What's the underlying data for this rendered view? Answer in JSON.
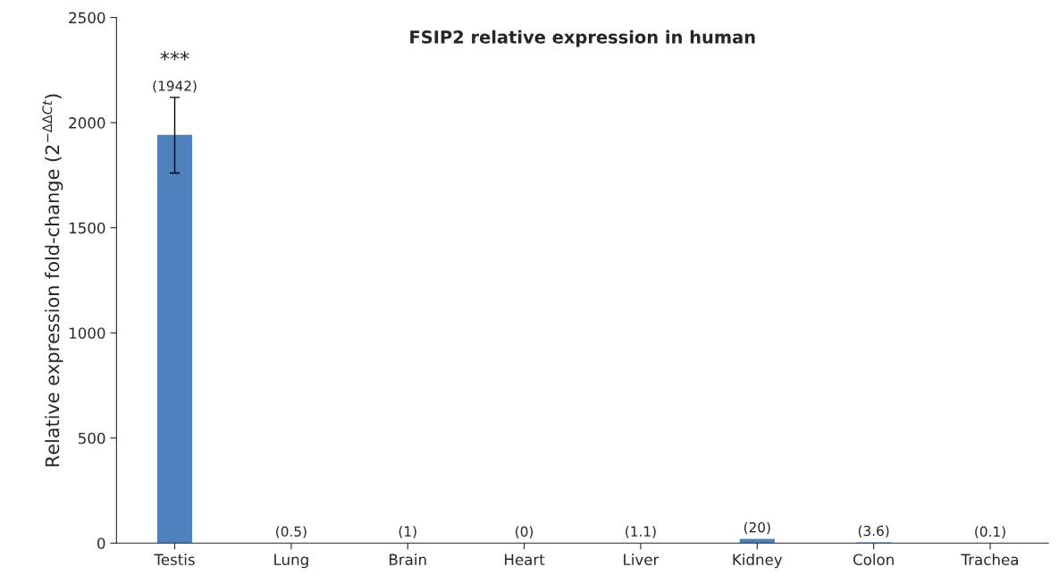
{
  "chart_data": {
    "type": "bar",
    "title": "FSIP2 relative expression in human",
    "ylabel": "Relative expression fold-change (2$^{−ΔΔCt}$)",
    "categories": [
      "Testis",
      "Lung",
      "Brain",
      "Heart",
      "Liver",
      "Kidney",
      "Colon",
      "Trachea"
    ],
    "values": [
      1942,
      0.5,
      1,
      0,
      1.1,
      20,
      3.6,
      0.1
    ],
    "value_labels": [
      "(1942)",
      "(0.5)",
      "(1)",
      "(0)",
      "(1.1)",
      "(20)",
      "(3.6)",
      "(0.1)"
    ],
    "errors": [
      [
        1760,
        2120
      ],
      null,
      null,
      null,
      null,
      null,
      null,
      null
    ],
    "color": "#4f81bd",
    "annotations": [
      "***"
    ],
    "ylim": [
      0,
      2500
    ],
    "yticks": [
      0,
      500,
      1000,
      1500,
      2000,
      2500
    ],
    "grid": false,
    "legend": false
  }
}
